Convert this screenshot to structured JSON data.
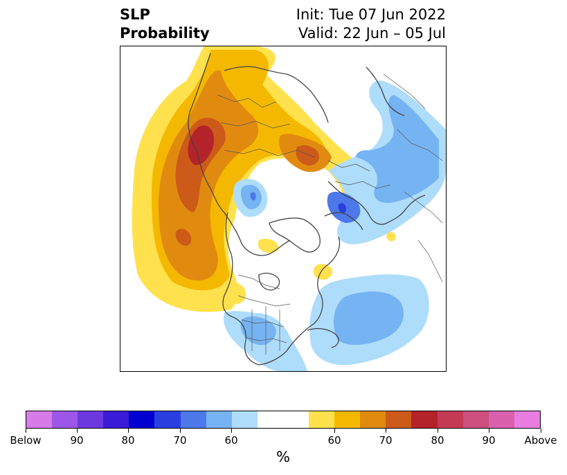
{
  "header": {
    "title_line1": "SLP",
    "title_line2": "Probability",
    "init": "Init: Tue 07 Jun 2022",
    "valid": "Valid: 22 Jun – 05 Jul"
  },
  "colorbar": {
    "unit": "%",
    "colors": [
      "#d77be8",
      "#9c57e6",
      "#6c39e0",
      "#3a1bd8",
      "#0000d0",
      "#2a3fe0",
      "#4d78ea",
      "#76b3f2",
      "#aedcfb",
      "#ffffff",
      "#ffffff",
      "#ffe14d",
      "#f5b800",
      "#e08b10",
      "#cc5a18",
      "#b4232a",
      "#c43a55",
      "#cc4f7e",
      "#da60ae",
      "#e87ddf"
    ],
    "tick_labels": [
      "Below",
      "90",
      "80",
      "70",
      "60",
      "60",
      "70",
      "80",
      "90",
      "Above"
    ]
  },
  "map": {
    "colors": {
      "light_yellow": "#ffe14d",
      "gold": "#f5b800",
      "orange": "#e08b10",
      "dark_orange": "#cc5a18",
      "red": "#b4232a",
      "light_blue": "#aedcfb",
      "mid_blue": "#76b3f2",
      "blue": "#4d78ea",
      "dark_blue": "#2a3fe0",
      "coast": "#444444",
      "border": "#555555"
    }
  }
}
